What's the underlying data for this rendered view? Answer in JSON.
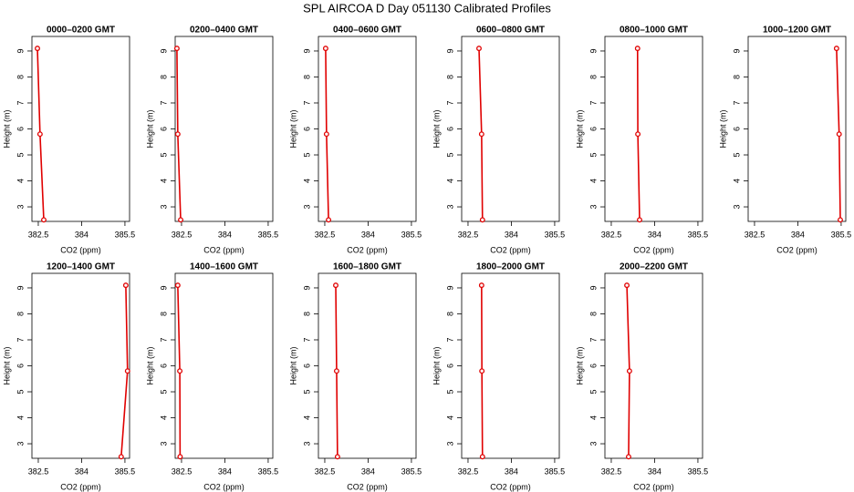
{
  "title": "SPL AIRCOA D  Day 051130  Calibrated Profiles",
  "chart_data": [
    {
      "type": "line",
      "title": "0000–0200 GMT",
      "xlabel": "CO2 (ppm)",
      "ylabel": "Height (m)",
      "color": "#e00000",
      "x": [
        382.47,
        382.56,
        382.69
      ],
      "y": [
        9.1,
        5.8,
        2.5
      ],
      "xlim": [
        382.28,
        385.66
      ],
      "ylim": [
        2.44,
        9.56
      ],
      "xticks": [
        382.5,
        384.0,
        385.5
      ],
      "yticks": [
        3,
        4,
        5,
        6,
        7,
        8,
        9
      ]
    },
    {
      "type": "line",
      "title": "0200–0400 GMT",
      "xlabel": "CO2 (ppm)",
      "ylabel": "Height (m)",
      "color": "#e00000",
      "x": [
        382.34,
        382.37,
        382.47
      ],
      "y": [
        9.1,
        5.8,
        2.5
      ],
      "xlim": [
        382.28,
        385.66
      ],
      "ylim": [
        2.44,
        9.56
      ],
      "xticks": [
        382.5,
        384.0,
        385.5
      ],
      "yticks": [
        3,
        4,
        5,
        6,
        7,
        8,
        9
      ]
    },
    {
      "type": "line",
      "title": "0400–0600 GMT",
      "xlabel": "CO2 (ppm)",
      "ylabel": "Height (m)",
      "color": "#e00000",
      "x": [
        382.53,
        382.56,
        382.63
      ],
      "y": [
        9.1,
        5.8,
        2.5
      ],
      "xlim": [
        382.28,
        385.66
      ],
      "ylim": [
        2.44,
        9.56
      ],
      "xticks": [
        382.5,
        384.0,
        385.5
      ],
      "yticks": [
        3,
        4,
        5,
        6,
        7,
        8,
        9
      ]
    },
    {
      "type": "line",
      "title": "0600–0800 GMT",
      "xlabel": "CO2 (ppm)",
      "ylabel": "Height (m)",
      "color": "#e00000",
      "x": [
        382.88,
        382.97,
        383.0
      ],
      "y": [
        9.1,
        5.8,
        2.5
      ],
      "xlim": [
        382.28,
        385.66
      ],
      "ylim": [
        2.44,
        9.56
      ],
      "xticks": [
        382.5,
        384.0,
        385.5
      ],
      "yticks": [
        3,
        4,
        5,
        6,
        7,
        8,
        9
      ]
    },
    {
      "type": "line",
      "title": "0800–1000 GMT",
      "xlabel": "CO2 (ppm)",
      "ylabel": "Height (m)",
      "color": "#e00000",
      "x": [
        383.41,
        383.42,
        383.48
      ],
      "y": [
        9.1,
        5.8,
        2.5
      ],
      "xlim": [
        382.28,
        385.66
      ],
      "ylim": [
        2.44,
        9.56
      ],
      "xticks": [
        382.5,
        384.0,
        385.5
      ],
      "yticks": [
        3,
        4,
        5,
        6,
        7,
        8,
        9
      ]
    },
    {
      "type": "line",
      "title": "1000–1200 GMT",
      "xlabel": "CO2 (ppm)",
      "ylabel": "Height (m)",
      "color": "#e00000",
      "x": [
        385.34,
        385.43,
        385.47
      ],
      "y": [
        9.1,
        5.8,
        2.5
      ],
      "xlim": [
        382.28,
        385.66
      ],
      "ylim": [
        2.44,
        9.56
      ],
      "xticks": [
        382.5,
        384.0,
        385.5
      ],
      "yticks": [
        3,
        4,
        5,
        6,
        7,
        8,
        9
      ]
    },
    {
      "type": "line",
      "title": "1200–1400 GMT",
      "xlabel": "CO2 (ppm)",
      "ylabel": "Height (m)",
      "color": "#e00000",
      "x": [
        385.53,
        385.59,
        385.37
      ],
      "y": [
        9.1,
        5.8,
        2.5
      ],
      "xlim": [
        382.28,
        385.66
      ],
      "ylim": [
        2.44,
        9.56
      ],
      "xticks": [
        382.5,
        384.0,
        385.5
      ],
      "yticks": [
        3,
        4,
        5,
        6,
        7,
        8,
        9
      ]
    },
    {
      "type": "line",
      "title": "1400–1600 GMT",
      "xlabel": "CO2 (ppm)",
      "ylabel": "Height (m)",
      "color": "#e00000",
      "x": [
        382.37,
        382.44,
        382.45
      ],
      "y": [
        9.1,
        5.8,
        2.5
      ],
      "xlim": [
        382.28,
        385.66
      ],
      "ylim": [
        2.44,
        9.56
      ],
      "xticks": [
        382.5,
        384.0,
        385.5
      ],
      "yticks": [
        3,
        4,
        5,
        6,
        7,
        8,
        9
      ]
    },
    {
      "type": "line",
      "title": "1600–1800 GMT",
      "xlabel": "CO2 (ppm)",
      "ylabel": "Height (m)",
      "color": "#e00000",
      "x": [
        382.88,
        382.91,
        382.94
      ],
      "y": [
        9.1,
        5.8,
        2.5
      ],
      "xlim": [
        382.28,
        385.66
      ],
      "ylim": [
        2.44,
        9.56
      ],
      "xticks": [
        382.5,
        384.0,
        385.5
      ],
      "yticks": [
        3,
        4,
        5,
        6,
        7,
        8,
        9
      ]
    },
    {
      "type": "line",
      "title": "1800–2000 GMT",
      "xlabel": "CO2 (ppm)",
      "ylabel": "Height (m)",
      "color": "#e00000",
      "x": [
        382.97,
        382.98,
        383.0
      ],
      "y": [
        9.1,
        5.8,
        2.5
      ],
      "xlim": [
        382.28,
        385.66
      ],
      "ylim": [
        2.44,
        9.56
      ],
      "xticks": [
        382.5,
        384.0,
        385.5
      ],
      "yticks": [
        3,
        4,
        5,
        6,
        7,
        8,
        9
      ]
    },
    {
      "type": "line",
      "title": "2000–2200 GMT",
      "xlabel": "CO2 (ppm)",
      "ylabel": "Height (m)",
      "color": "#e00000",
      "x": [
        383.04,
        383.13,
        383.1
      ],
      "y": [
        9.1,
        5.8,
        2.5
      ],
      "xlim": [
        382.28,
        385.66
      ],
      "ylim": [
        2.44,
        9.56
      ],
      "xticks": [
        382.5,
        384.0,
        385.5
      ],
      "yticks": [
        3,
        4,
        5,
        6,
        7,
        8,
        9
      ]
    }
  ]
}
